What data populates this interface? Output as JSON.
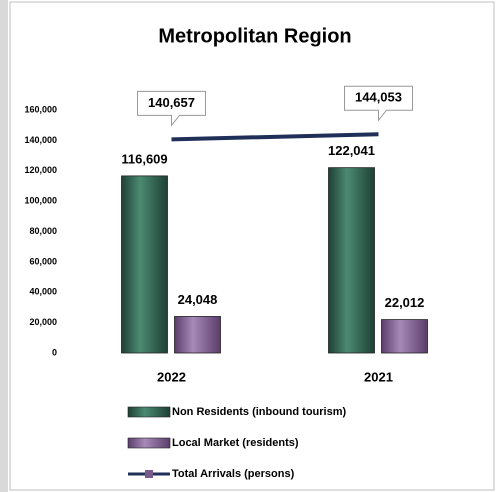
{
  "chart_data": {
    "type": "bar",
    "title": "Metropolitan Region",
    "categories": [
      "2022",
      "2021"
    ],
    "series": [
      {
        "name": "Non Residents (inbound tourism)",
        "color": "#2f5e4e",
        "values": [
          116609,
          122041
        ],
        "value_labels": [
          "116,609",
          "122,041"
        ]
      },
      {
        "name": "Local Market (residents)",
        "color": "#7a5a8a",
        "values": [
          24048,
          22012
        ],
        "value_labels": [
          "24,048",
          "22,012"
        ]
      },
      {
        "name": "Total Arrivals (persons)",
        "color": "#1f2f57",
        "type": "line",
        "values": [
          140657,
          144053
        ],
        "value_labels": [
          "140,657",
          "144,053"
        ]
      }
    ],
    "ylim": [
      0,
      160000
    ],
    "yticks": [
      0,
      {
        "value": 20000,
        "label": "20,000"
      },
      {
        "value": 40000,
        "label": "40,000"
      },
      {
        "value": 60000,
        "label": "60,000"
      },
      {
        "value": 80000,
        "label": "80,000"
      },
      {
        "value": 100000,
        "label": "100,000"
      },
      {
        "value": 120000,
        "label": "120,000"
      },
      {
        "value": 140000,
        "label": "140,000"
      },
      {
        "value": 160000,
        "label": "160,000"
      }
    ]
  }
}
